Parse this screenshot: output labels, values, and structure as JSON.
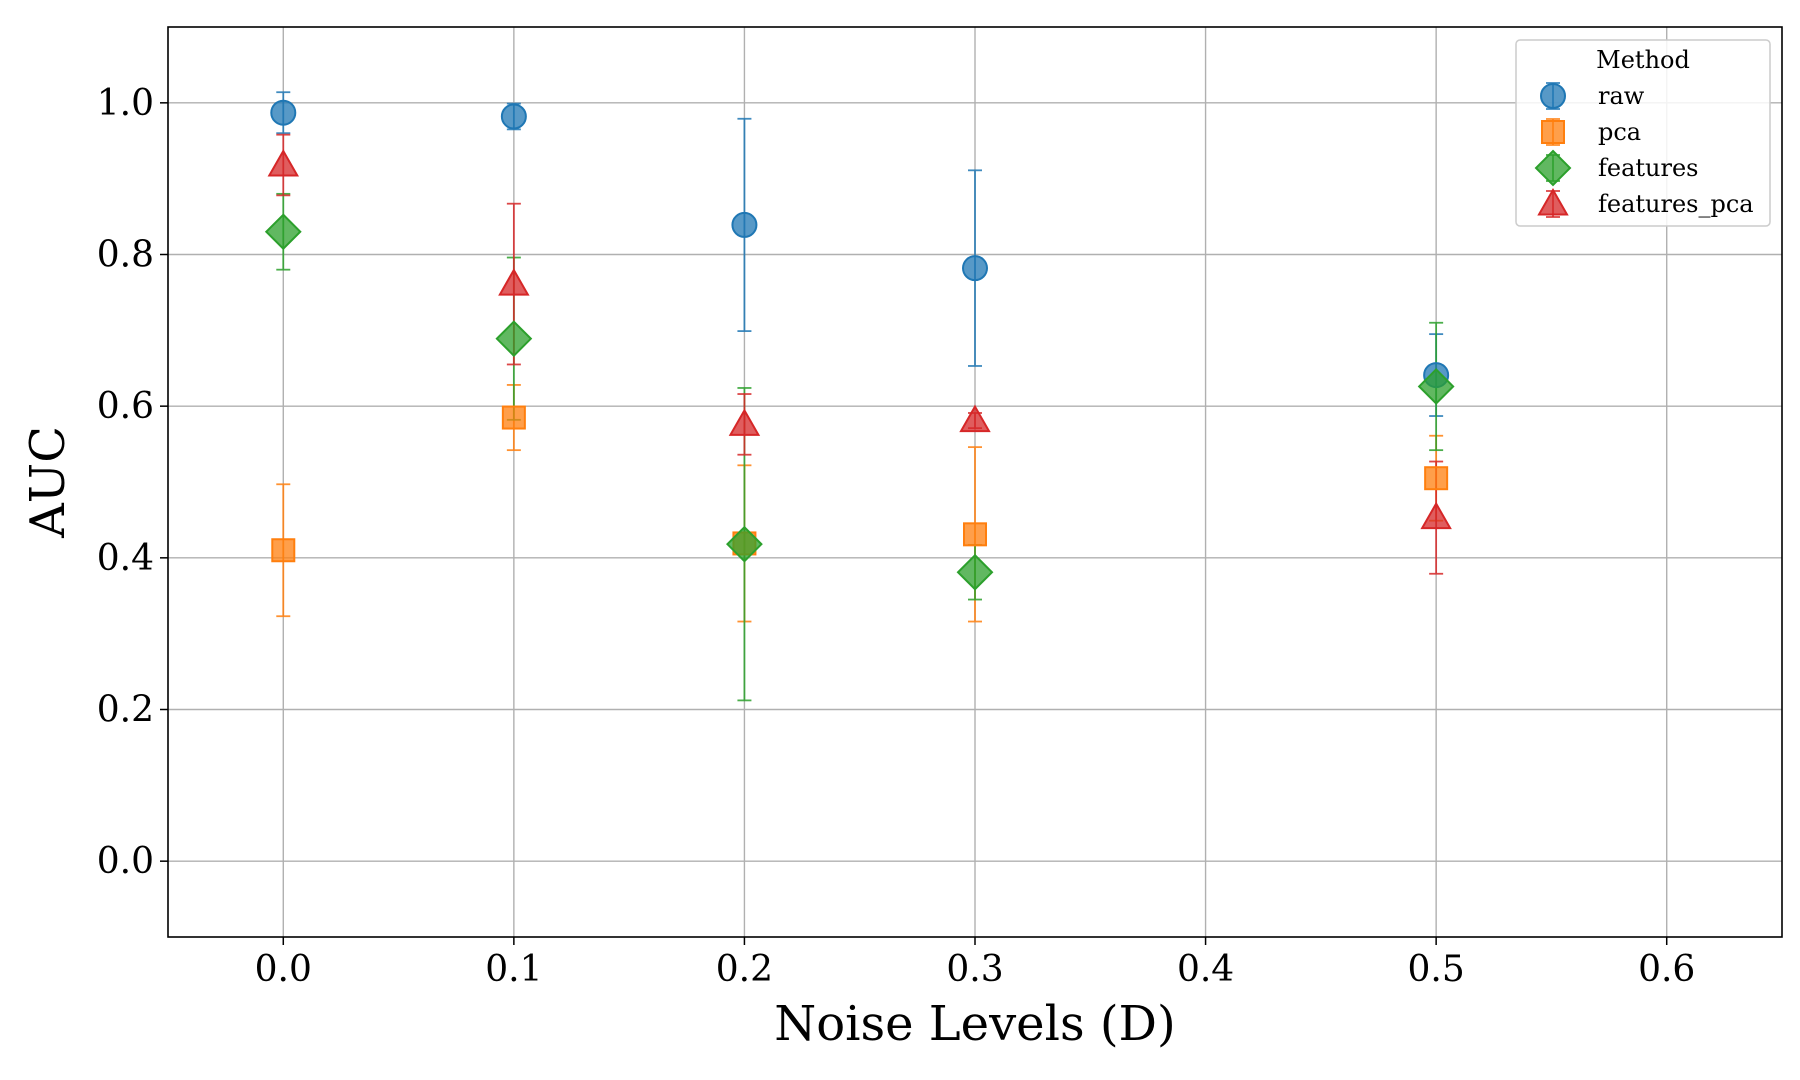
{
  "chart_data": {
    "type": "scatter",
    "xlabel": "Noise Levels (D)",
    "ylabel": "AUC",
    "xlim": [
      -0.05,
      0.65
    ],
    "ylim": [
      -0.1,
      1.1
    ],
    "xticks": [
      "0.0",
      "0.1",
      "0.2",
      "0.3",
      "0.4",
      "0.5",
      "0.6"
    ],
    "yticks": [
      "0.0",
      "0.2",
      "0.4",
      "0.6",
      "0.8",
      "1.0"
    ],
    "grid": true,
    "legend": {
      "title": "Method",
      "placement": "top-right"
    },
    "series": [
      {
        "name": "raw",
        "marker": "circle",
        "color": "#1f77b4",
        "x": [
          0.0,
          0.1,
          0.2,
          0.3,
          0.5
        ],
        "y": [
          0.987,
          0.982,
          0.839,
          0.782,
          0.641
        ],
        "err": [
          0.027,
          0.017,
          0.14,
          0.129,
          0.054
        ]
      },
      {
        "name": "pca",
        "marker": "square",
        "color": "#ff7f0e",
        "x": [
          0.0,
          0.1,
          0.2,
          0.3,
          0.5
        ],
        "y": [
          0.41,
          0.585,
          0.419,
          0.431,
          0.505
        ],
        "err": [
          0.087,
          0.043,
          0.103,
          0.115,
          0.056
        ]
      },
      {
        "name": "features",
        "marker": "diamond",
        "color": "#2ca02c",
        "x": [
          0.0,
          0.1,
          0.2,
          0.3,
          0.5
        ],
        "y": [
          0.83,
          0.689,
          0.418,
          0.381,
          0.626
        ],
        "err": [
          0.05,
          0.107,
          0.206,
          0.036,
          0.084
        ]
      },
      {
        "name": "features_pca",
        "marker": "triangle",
        "color": "#d62728",
        "x": [
          0.0,
          0.1,
          0.2,
          0.3,
          0.5
        ],
        "y": [
          0.918,
          0.761,
          0.576,
          0.581,
          0.453
        ],
        "err": [
          0.04,
          0.106,
          0.04,
          0.01,
          0.074
        ]
      }
    ]
  }
}
